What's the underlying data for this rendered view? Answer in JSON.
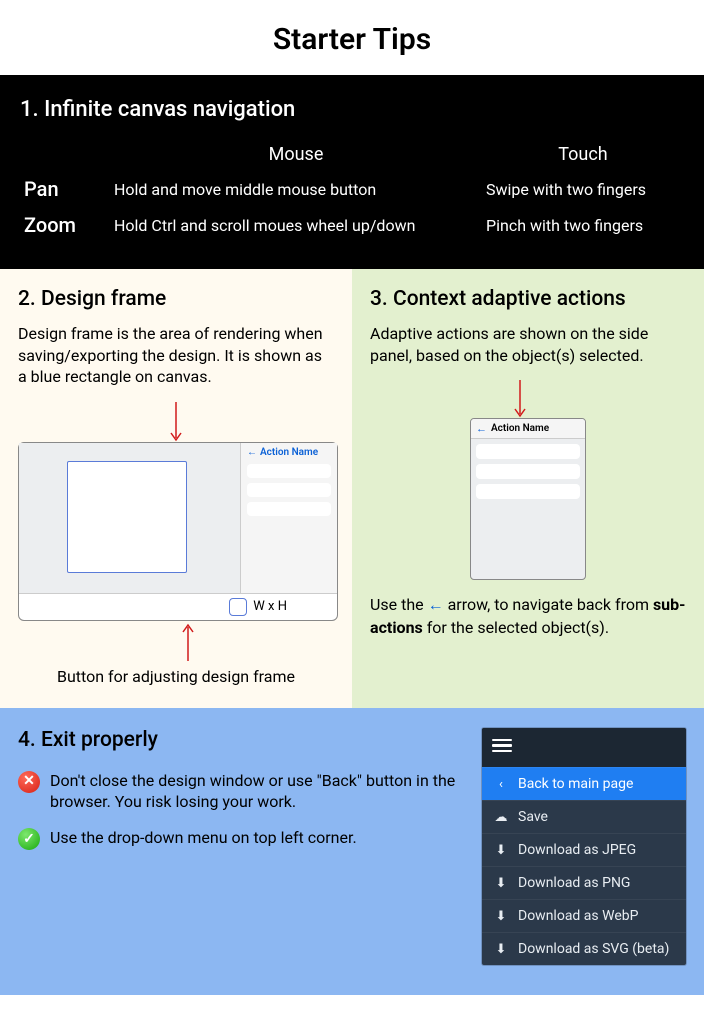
{
  "title": "Starter Tips",
  "section1": {
    "heading": "1. Infinite canvas navigation",
    "columns": [
      "",
      "Mouse",
      "Touch"
    ],
    "rows": [
      {
        "label": "Pan",
        "mouse": "Hold and move middle mouse button",
        "touch": "Swipe with two fingers"
      },
      {
        "label": "Zoom",
        "mouse": "Hold Ctrl and scroll moues wheel up/down",
        "touch": "Pinch with two fingers"
      }
    ],
    "colors": {
      "bg": "#000000",
      "fg": "#ffffff"
    }
  },
  "section2": {
    "heading": "2. Design frame",
    "body": "Design frame is the area of rendering when saving/exporting the design. It is shown as a blue rectangle on canvas.",
    "action_label": "Action Name",
    "wxh_label": "W x H",
    "caption": "Button for adjusting design frame",
    "colors": {
      "bg": "#fffaf0",
      "frame_border": "#5a7bd8",
      "arrow": "#d11a1a"
    }
  },
  "section3": {
    "heading": "3. Context adaptive actions",
    "body": "Adaptive actions are shown on the side panel, based on the object(s) selected.",
    "action_label": "Action Name",
    "tail_pre": "Use the ",
    "tail_arrow": "←",
    "tail_mid": " arrow, to navigate back from ",
    "tail_bold": "sub-actions",
    "tail_post": "  for the selected object(s).",
    "colors": {
      "bg": "#e3f0cf",
      "arrow": "#d11a1a",
      "link": "#0b61d6"
    }
  },
  "section4": {
    "heading": "4. Exit properly",
    "dont": "Don't close the design window or use \"Back\" button in the browser. You risk losing your work.",
    "do": "Use the drop-down menu on top left corner.",
    "menu": {
      "items": [
        {
          "icon": "chevron-left",
          "label": "Back to main page",
          "active": true
        },
        {
          "icon": "cloud",
          "label": "Save"
        },
        {
          "icon": "download",
          "label": "Download as JPEG"
        },
        {
          "icon": "download",
          "label": "Download as PNG"
        },
        {
          "icon": "download",
          "label": "Download as WebP"
        },
        {
          "icon": "download",
          "label": "Download as SVG (beta)"
        }
      ],
      "colors": {
        "bg": "#2b394a",
        "bar": "#1c2733",
        "active": "#1f7ef2",
        "fg": "#e8edf2"
      }
    },
    "colors": {
      "bg": "#8cb7f2",
      "x": "#d62014",
      "ok": "#18a80c"
    }
  }
}
